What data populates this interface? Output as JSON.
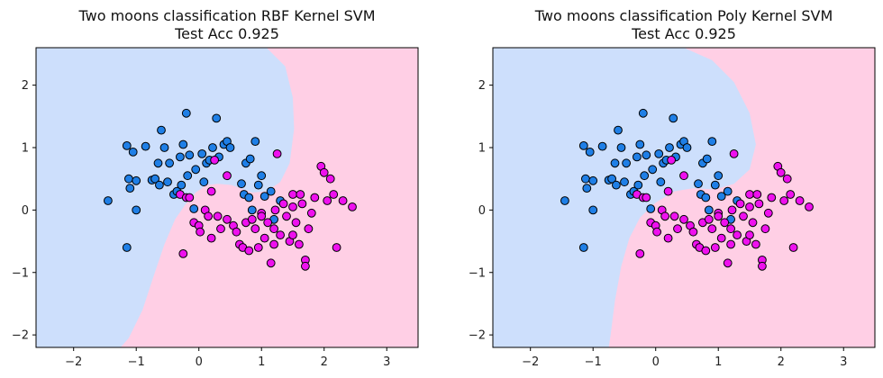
{
  "colors": {
    "class0_region": "#cddffc",
    "class1_region": "#ffcfe5",
    "class0_point": "#1f7fe6",
    "class1_point": "#ee11ee",
    "edge": "#000000"
  },
  "chart_data": [
    {
      "type": "scatter",
      "title": "Two moons classification RBF Kernel SVM",
      "subtitle": "Test Acc 0.925",
      "xlabel": "",
      "ylabel": "",
      "xlim": [
        -2.6,
        3.5
      ],
      "ylim": [
        -2.2,
        2.6
      ],
      "xticks": [
        "-2",
        "-1",
        "0",
        "1",
        "2",
        "3"
      ],
      "yticks": [
        "-2",
        "-1",
        "0",
        "1",
        "2"
      ],
      "grid": false,
      "legend": "none",
      "background": "decision regions: class 0 blue, class 1 pink",
      "series": [
        {
          "class": 0,
          "points": [
            [
              -1.45,
              0.15
            ],
            [
              -1.15,
              1.03
            ],
            [
              -1.12,
              0.5
            ],
            [
              -1.1,
              0.35
            ],
            [
              -1.05,
              0.93
            ],
            [
              -1.0,
              0.0
            ],
            [
              -1.0,
              0.47
            ],
            [
              -0.85,
              1.02
            ],
            [
              -0.75,
              0.48
            ],
            [
              -0.7,
              0.5
            ],
            [
              -0.65,
              0.75
            ],
            [
              -0.63,
              0.4
            ],
            [
              -0.6,
              1.28
            ],
            [
              -0.55,
              1.0
            ],
            [
              -0.5,
              0.45
            ],
            [
              -0.47,
              0.75
            ],
            [
              -0.4,
              0.25
            ],
            [
              -0.35,
              0.3
            ],
            [
              -0.3,
              0.85
            ],
            [
              -0.28,
              0.4
            ],
            [
              -0.25,
              1.05
            ],
            [
              -0.2,
              1.55
            ],
            [
              -0.18,
              0.55
            ],
            [
              -0.15,
              0.88
            ],
            [
              -0.05,
              0.65
            ],
            [
              0.05,
              0.9
            ],
            [
              0.08,
              0.45
            ],
            [
              0.12,
              0.75
            ],
            [
              0.17,
              0.8
            ],
            [
              0.22,
              1.0
            ],
            [
              0.28,
              1.47
            ],
            [
              0.32,
              0.85
            ],
            [
              0.4,
              1.05
            ],
            [
              0.45,
              1.1
            ],
            [
              0.5,
              1.0
            ],
            [
              0.68,
              0.42
            ],
            [
              0.72,
              0.25
            ],
            [
              0.75,
              0.75
            ],
            [
              0.8,
              0.2
            ],
            [
              0.82,
              0.82
            ],
            [
              0.85,
              0.0
            ],
            [
              0.9,
              1.1
            ],
            [
              0.95,
              0.4
            ],
            [
              1.0,
              0.55
            ],
            [
              1.05,
              0.22
            ],
            [
              1.15,
              0.3
            ],
            [
              1.2,
              -0.15
            ],
            [
              1.3,
              0.15
            ],
            [
              -1.15,
              -0.6
            ],
            [
              -0.08,
              0.02
            ]
          ]
        },
        {
          "class": 1,
          "points": [
            [
              -0.3,
              0.25
            ],
            [
              -0.25,
              -0.7
            ],
            [
              -0.2,
              0.2
            ],
            [
              -0.15,
              0.2
            ],
            [
              -0.08,
              -0.2
            ],
            [
              0.0,
              -0.25
            ],
            [
              0.02,
              -0.35
            ],
            [
              0.1,
              0.0
            ],
            [
              0.15,
              -0.1
            ],
            [
              0.2,
              -0.45
            ],
            [
              0.2,
              0.3
            ],
            [
              0.25,
              0.8
            ],
            [
              0.3,
              -0.1
            ],
            [
              0.35,
              -0.3
            ],
            [
              0.45,
              0.55
            ],
            [
              0.45,
              -0.15
            ],
            [
              0.55,
              -0.25
            ],
            [
              0.6,
              -0.35
            ],
            [
              0.65,
              -0.55
            ],
            [
              0.7,
              -0.6
            ],
            [
              0.75,
              -0.2
            ],
            [
              0.8,
              -0.65
            ],
            [
              0.85,
              -0.15
            ],
            [
              0.9,
              -0.3
            ],
            [
              0.95,
              -0.6
            ],
            [
              1.0,
              -0.05
            ],
            [
              1.05,
              -0.45
            ],
            [
              1.1,
              -0.2
            ],
            [
              1.15,
              -0.85
            ],
            [
              1.2,
              -0.55
            ],
            [
              1.2,
              -0.3
            ],
            [
              1.22,
              0.0
            ],
            [
              1.25,
              0.9
            ],
            [
              1.3,
              -0.4
            ],
            [
              1.35,
              0.1
            ],
            [
              1.4,
              -0.1
            ],
            [
              1.45,
              -0.5
            ],
            [
              1.5,
              -0.4
            ],
            [
              1.5,
              0.25
            ],
            [
              1.5,
              0.05
            ],
            [
              1.55,
              -0.2
            ],
            [
              1.6,
              -0.55
            ],
            [
              1.62,
              0.25
            ],
            [
              1.65,
              0.1
            ],
            [
              1.7,
              -0.8
            ],
            [
              1.7,
              -0.9
            ],
            [
              1.75,
              -0.3
            ],
            [
              1.8,
              -0.05
            ],
            [
              1.85,
              0.2
            ],
            [
              1.95,
              0.7
            ],
            [
              2.0,
              0.6
            ],
            [
              2.05,
              0.15
            ],
            [
              2.1,
              0.5
            ],
            [
              2.15,
              0.25
            ],
            [
              2.2,
              -0.6
            ],
            [
              2.3,
              0.15
            ],
            [
              2.45,
              0.05
            ],
            [
              1.0,
              -0.1
            ]
          ]
        }
      ]
    },
    {
      "type": "scatter",
      "title": "Two moons classification Poly Kernel SVM",
      "subtitle": "Test Acc 0.925",
      "xlabel": "",
      "ylabel": "",
      "xlim": [
        -2.6,
        3.5
      ],
      "ylim": [
        -2.2,
        2.6
      ],
      "xticks": [
        "-2",
        "-1",
        "0",
        "1",
        "2",
        "3"
      ],
      "yticks": [
        "-2",
        "-1",
        "0",
        "1",
        "2"
      ],
      "grid": false,
      "legend": "none",
      "background": "decision regions: class 0 blue, class 1 pink",
      "series": [
        {
          "class": 0,
          "points": [
            [
              -1.45,
              0.15
            ],
            [
              -1.15,
              1.03
            ],
            [
              -1.12,
              0.5
            ],
            [
              -1.1,
              0.35
            ],
            [
              -1.05,
              0.93
            ],
            [
              -1.0,
              0.0
            ],
            [
              -1.0,
              0.47
            ],
            [
              -0.85,
              1.02
            ],
            [
              -0.75,
              0.48
            ],
            [
              -0.7,
              0.5
            ],
            [
              -0.65,
              0.75
            ],
            [
              -0.63,
              0.4
            ],
            [
              -0.6,
              1.28
            ],
            [
              -0.55,
              1.0
            ],
            [
              -0.5,
              0.45
            ],
            [
              -0.47,
              0.75
            ],
            [
              -0.4,
              0.25
            ],
            [
              -0.35,
              0.3
            ],
            [
              -0.3,
              0.85
            ],
            [
              -0.28,
              0.4
            ],
            [
              -0.25,
              1.05
            ],
            [
              -0.2,
              1.55
            ],
            [
              -0.18,
              0.55
            ],
            [
              -0.15,
              0.88
            ],
            [
              -0.05,
              0.65
            ],
            [
              0.05,
              0.9
            ],
            [
              0.08,
              0.45
            ],
            [
              0.12,
              0.75
            ],
            [
              0.17,
              0.8
            ],
            [
              0.22,
              1.0
            ],
            [
              0.28,
              1.47
            ],
            [
              0.32,
              0.85
            ],
            [
              0.4,
              1.05
            ],
            [
              0.45,
              1.1
            ],
            [
              0.5,
              1.0
            ],
            [
              0.68,
              0.42
            ],
            [
              0.72,
              0.25
            ],
            [
              0.75,
              0.75
            ],
            [
              0.8,
              0.2
            ],
            [
              0.82,
              0.82
            ],
            [
              0.85,
              0.0
            ],
            [
              0.9,
              1.1
            ],
            [
              0.95,
              0.4
            ],
            [
              1.0,
              0.55
            ],
            [
              1.05,
              0.22
            ],
            [
              1.15,
              0.3
            ],
            [
              1.2,
              -0.15
            ],
            [
              1.3,
              0.15
            ],
            [
              -1.15,
              -0.6
            ],
            [
              -0.08,
              0.02
            ]
          ]
        },
        {
          "class": 1,
          "points": [
            [
              -0.3,
              0.25
            ],
            [
              -0.25,
              -0.7
            ],
            [
              -0.2,
              0.2
            ],
            [
              -0.15,
              0.2
            ],
            [
              -0.08,
              -0.2
            ],
            [
              0.0,
              -0.25
            ],
            [
              0.02,
              -0.35
            ],
            [
              0.1,
              0.0
            ],
            [
              0.15,
              -0.1
            ],
            [
              0.2,
              -0.45
            ],
            [
              0.2,
              0.3
            ],
            [
              0.25,
              0.8
            ],
            [
              0.3,
              -0.1
            ],
            [
              0.35,
              -0.3
            ],
            [
              0.45,
              0.55
            ],
            [
              0.45,
              -0.15
            ],
            [
              0.55,
              -0.25
            ],
            [
              0.6,
              -0.35
            ],
            [
              0.65,
              -0.55
            ],
            [
              0.7,
              -0.6
            ],
            [
              0.75,
              -0.2
            ],
            [
              0.8,
              -0.65
            ],
            [
              0.85,
              -0.15
            ],
            [
              0.9,
              -0.3
            ],
            [
              0.95,
              -0.6
            ],
            [
              1.0,
              -0.05
            ],
            [
              1.05,
              -0.45
            ],
            [
              1.1,
              -0.2
            ],
            [
              1.15,
              -0.85
            ],
            [
              1.2,
              -0.55
            ],
            [
              1.2,
              -0.3
            ],
            [
              1.22,
              0.0
            ],
            [
              1.25,
              0.9
            ],
            [
              1.3,
              -0.4
            ],
            [
              1.35,
              0.1
            ],
            [
              1.4,
              -0.1
            ],
            [
              1.45,
              -0.5
            ],
            [
              1.5,
              -0.4
            ],
            [
              1.5,
              0.25
            ],
            [
              1.5,
              0.05
            ],
            [
              1.55,
              -0.2
            ],
            [
              1.6,
              -0.55
            ],
            [
              1.62,
              0.25
            ],
            [
              1.65,
              0.1
            ],
            [
              1.7,
              -0.8
            ],
            [
              1.7,
              -0.9
            ],
            [
              1.75,
              -0.3
            ],
            [
              1.8,
              -0.05
            ],
            [
              1.85,
              0.2
            ],
            [
              1.95,
              0.7
            ],
            [
              2.0,
              0.6
            ],
            [
              2.05,
              0.15
            ],
            [
              2.1,
              0.5
            ],
            [
              2.15,
              0.25
            ],
            [
              2.2,
              -0.6
            ],
            [
              2.3,
              0.15
            ],
            [
              2.45,
              0.05
            ],
            [
              1.0,
              -0.1
            ]
          ]
        }
      ]
    }
  ]
}
